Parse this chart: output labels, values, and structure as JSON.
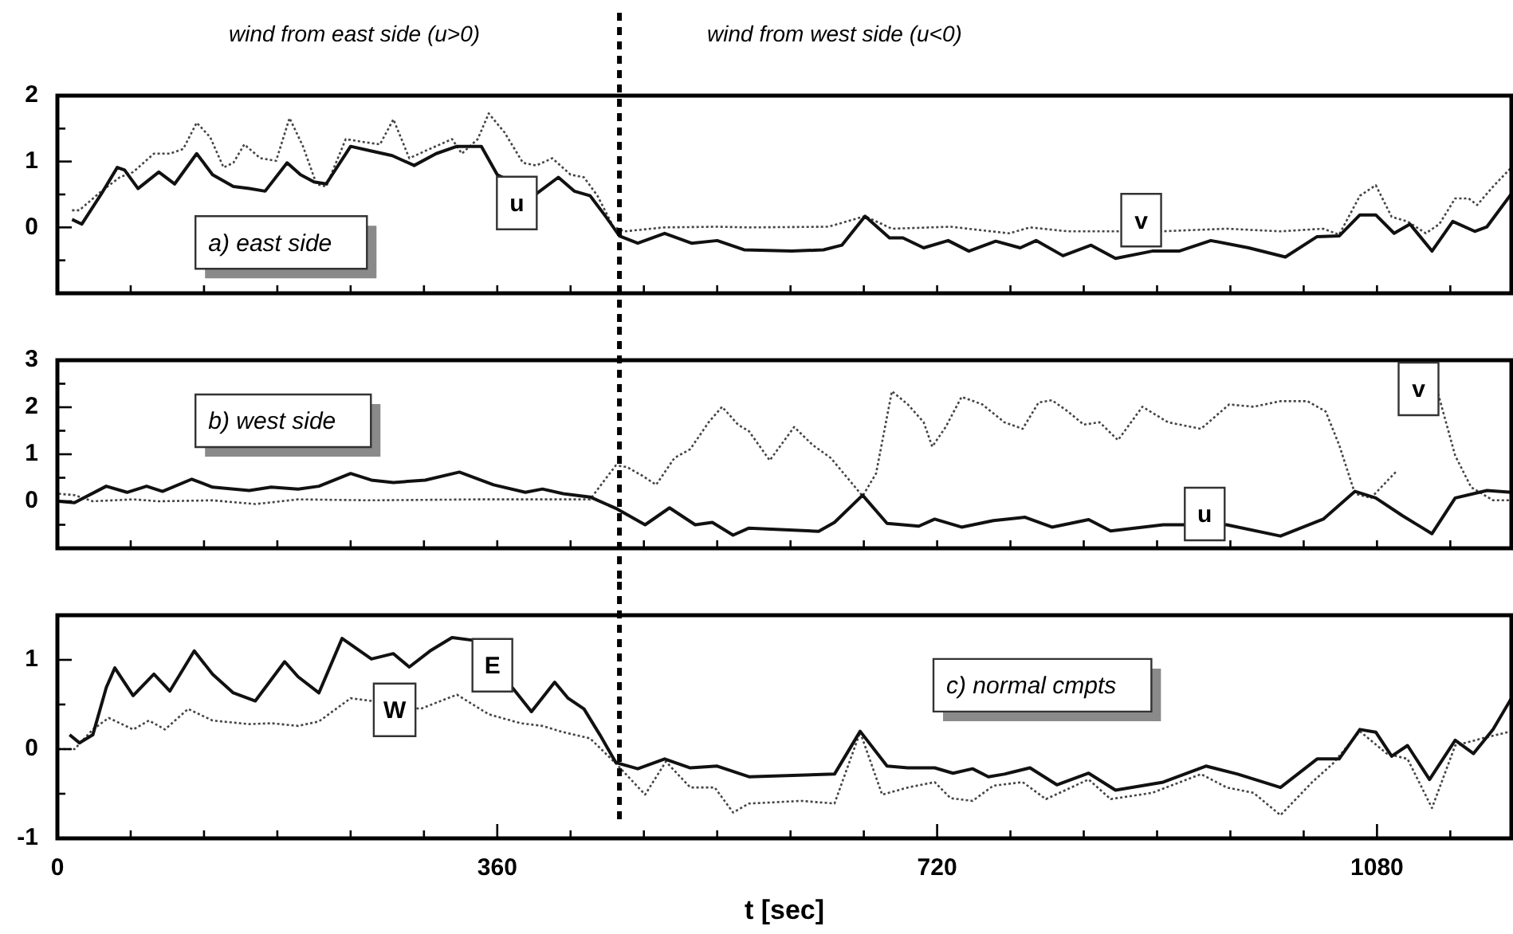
{
  "chart_data": [
    {
      "type": "line",
      "title": "a) east side",
      "annotations": [
        "wind from east side (u>0)",
        "wind from west side (u<0)"
      ],
      "xlim": [
        0,
        1190
      ],
      "ylim": [
        -1,
        2
      ],
      "xticks": [
        0,
        {
          "value": 60,
          "label": null
        },
        {
          "value": 120,
          "label": null
        },
        {
          "value": 180,
          "label": null
        },
        {
          "value": 240,
          "label": null
        },
        {
          "value": 300,
          "label": null
        },
        {
          "value": 360,
          "label": null
        },
        {
          "value": 420,
          "label": null
        },
        {
          "value": 480,
          "label": null
        },
        {
          "value": 540,
          "label": null
        },
        {
          "value": 600,
          "label": null
        },
        {
          "value": 660,
          "label": null
        },
        {
          "value": 720,
          "label": null
        },
        {
          "value": 780,
          "label": null
        },
        {
          "value": 840,
          "label": null
        },
        {
          "value": 900,
          "label": null
        },
        {
          "value": 960,
          "label": null
        },
        {
          "value": 1020,
          "label": null
        },
        {
          "value": 1080,
          "label": null
        },
        {
          "value": 1140,
          "label": null
        }
      ],
      "yticks": [
        {
          "value": -0.5,
          "label": null
        },
        0,
        {
          "value": 0.5,
          "label": null
        },
        1,
        {
          "value": 1.5,
          "label": null
        },
        2
      ],
      "tick_labels": "y",
      "marker": "none",
      "ref_lines": [
        {
          "axis": "x",
          "value": 460,
          "line_style": "dashed",
          "color": "#000000"
        }
      ],
      "series": [
        {
          "name": "u",
          "color": "#111111",
          "line_style": "solid",
          "x": [
            12,
            20,
            36,
            49,
            55,
            66,
            83,
            96,
            114,
            127,
            144,
            157,
            170,
            188,
            199,
            210,
            220,
            240,
            257,
            274,
            292,
            310,
            327,
            347,
            360,
            392,
            410,
            423,
            436,
            449,
            460,
            475,
            497,
            519,
            540,
            562,
            601,
            627,
            642,
            661,
            681,
            692,
            709,
            729,
            746,
            768,
            788,
            801,
            823,
            846,
            866,
            896,
            918,
            944,
            975,
            1005,
            1031,
            1049,
            1066,
            1079,
            1094,
            1107,
            1125,
            1142,
            1160,
            1170,
            1190
          ],
          "values": [
            0.12,
            0.05,
            0.51,
            0.91,
            0.87,
            0.59,
            0.84,
            0.66,
            1.12,
            0.8,
            0.62,
            0.59,
            0.55,
            0.98,
            0.8,
            0.69,
            0.66,
            1.23,
            1.16,
            1.09,
            0.94,
            1.12,
            1.23,
            1.23,
            0.8,
            0.51,
            0.76,
            0.55,
            0.48,
            0.16,
            -0.13,
            -0.24,
            -0.09,
            -0.24,
            -0.2,
            -0.34,
            -0.36,
            -0.34,
            -0.27,
            0.17,
            -0.16,
            -0.16,
            -0.31,
            -0.2,
            -0.36,
            -0.21,
            -0.31,
            -0.2,
            -0.43,
            -0.27,
            -0.47,
            -0.36,
            -0.36,
            -0.2,
            -0.31,
            -0.45,
            -0.14,
            -0.13,
            0.19,
            0.19,
            -0.09,
            0.05,
            -0.36,
            0.09,
            -0.06,
            0.01,
            0.51
          ]
        },
        {
          "name": "v",
          "color": "#444444",
          "line_style": "dotted",
          "x": [
            12,
            18,
            36,
            51,
            62,
            79,
            92,
            103,
            114,
            125,
            136,
            144,
            153,
            166,
            179,
            190,
            201,
            212,
            220,
            236,
            249,
            264,
            275,
            288,
            301,
            323,
            331,
            344,
            353,
            366,
            381,
            392,
            405,
            420,
            431,
            442,
            455,
            464,
            497,
            540,
            566,
            631,
            661,
            683,
            731,
            779,
            796,
            827,
            870,
            903,
            957,
            1001,
            1036,
            1049,
            1066,
            1079,
            1092,
            1105,
            1120,
            1131,
            1144,
            1155,
            1162,
            1175,
            1190
          ],
          "values": [
            0.26,
            0.26,
            0.55,
            0.76,
            0.84,
            1.12,
            1.12,
            1.19,
            1.59,
            1.37,
            0.91,
            0.98,
            1.26,
            1.05,
            1.01,
            1.66,
            1.23,
            0.66,
            0.62,
            1.34,
            1.3,
            1.26,
            1.64,
            1.05,
            1.16,
            1.34,
            1.12,
            1.34,
            1.73,
            1.44,
            0.98,
            0.94,
            1.05,
            0.8,
            0.76,
            0.48,
            0.01,
            -0.06,
            0,
            0.01,
            0,
            0.01,
            0.17,
            -0.02,
            0.01,
            -0.09,
            0,
            -0.06,
            -0.06,
            -0.06,
            -0.02,
            -0.06,
            -0.02,
            -0.11,
            0.48,
            0.64,
            0.16,
            0.09,
            -0.09,
            0.05,
            0.44,
            0.44,
            0.34,
            0.62,
            0.91
          ]
        }
      ]
    },
    {
      "type": "line",
      "title": "b) west side",
      "xlim": [
        0,
        1190
      ],
      "ylim": [
        -1,
        3
      ],
      "xticks": [
        0,
        {
          "value": 60,
          "label": null
        },
        {
          "value": 120,
          "label": null
        },
        {
          "value": 180,
          "label": null
        },
        {
          "value": 240,
          "label": null
        },
        {
          "value": 300,
          "label": null
        },
        {
          "value": 360,
          "label": null
        },
        {
          "value": 420,
          "label": null
        },
        {
          "value": 480,
          "label": null
        },
        {
          "value": 540,
          "label": null
        },
        {
          "value": 600,
          "label": null
        },
        {
          "value": 660,
          "label": null
        },
        {
          "value": 720,
          "label": null
        },
        {
          "value": 780,
          "label": null
        },
        {
          "value": 840,
          "label": null
        },
        {
          "value": 900,
          "label": null
        },
        {
          "value": 960,
          "label": null
        },
        {
          "value": 1020,
          "label": null
        },
        {
          "value": 1080,
          "label": null
        },
        {
          "value": 1140,
          "label": null
        }
      ],
      "yticks": [
        {
          "value": -0.5,
          "label": null
        },
        0,
        {
          "value": 0.5,
          "label": null
        },
        1,
        {
          "value": 1.5,
          "label": null
        },
        2,
        {
          "value": 2.5,
          "label": null
        },
        3
      ],
      "tick_labels": "y",
      "marker": "none",
      "ref_lines": [
        {
          "axis": "x",
          "value": 460,
          "line_style": "dashed",
          "color": "#000000"
        }
      ],
      "series": [
        {
          "name": "u",
          "color": "#111111",
          "line_style": "solid",
          "x": [
            1,
            14,
            40,
            57,
            73,
            86,
            110,
            127,
            157,
            175,
            197,
            214,
            240,
            257,
            275,
            301,
            329,
            357,
            383,
            397,
            414,
            436,
            457,
            481,
            501,
            522,
            536,
            553,
            566,
            623,
            636,
            659,
            679,
            705,
            718,
            740,
            766,
            792,
            814,
            844,
            862,
            905,
            957,
            1001,
            1036,
            1062,
            1079,
            1101,
            1125,
            1144,
            1170,
            1190
          ],
          "values": [
            0,
            -0.03,
            0.32,
            0.19,
            0.32,
            0.21,
            0.47,
            0.3,
            0.23,
            0.3,
            0.26,
            0.32,
            0.59,
            0.45,
            0.4,
            0.45,
            0.62,
            0.35,
            0.19,
            0.26,
            0.16,
            0.09,
            -0.15,
            -0.5,
            -0.14,
            -0.5,
            -0.45,
            -0.72,
            -0.57,
            -0.64,
            -0.45,
            0.13,
            -0.47,
            -0.53,
            -0.38,
            -0.55,
            -0.41,
            -0.34,
            -0.55,
            -0.39,
            -0.63,
            -0.5,
            -0.5,
            -0.74,
            -0.38,
            0.21,
            0.07,
            -0.31,
            -0.69,
            0.07,
            0.23,
            0.19
          ]
        },
        {
          "name": "v",
          "color": "#444444",
          "line_style": "dotted",
          "x": [
            1,
            14,
            29,
            62,
            83,
            127,
            162,
            197,
            257,
            344,
            436,
            449,
            457,
            466,
            479,
            490,
            505,
            518,
            533,
            544,
            557,
            566,
            583,
            603,
            618,
            633,
            659,
            670,
            683,
            696,
            709,
            716,
            727,
            740,
            757,
            775,
            790,
            803,
            814,
            827,
            840,
            853,
            868,
            888,
            909,
            936,
            959,
            979,
            1001,
            1023,
            1038,
            1049,
            1062,
            1075,
            1096,
            1105,
            1130,
            1144,
            1157,
            1175,
            1190
          ],
          "values": [
            0.16,
            0.13,
            0,
            0.04,
            0,
            0.02,
            -0.06,
            0.04,
            0.02,
            0.04,
            0.04,
            0.49,
            0.76,
            0.73,
            0.54,
            0.35,
            0.92,
            1.11,
            1.68,
            2.01,
            1.63,
            1.49,
            0.87,
            1.58,
            1.2,
            0.92,
            0.11,
            0.59,
            2.34,
            2.06,
            1.68,
            1.16,
            1.58,
            2.22,
            2.06,
            1.68,
            1.54,
            2.1,
            2.15,
            1.91,
            1.63,
            1.68,
            1.3,
            2.01,
            1.68,
            1.54,
            2.06,
            2.01,
            2.13,
            2.13,
            1.91,
            1.2,
            0.16,
            0.07,
            0.64,
            null,
            2.29,
            0.97,
            0.3,
            0.02,
            0.02
          ]
        }
      ]
    },
    {
      "type": "line",
      "title": "c) normal cmpts",
      "xlabel": "t [sec]",
      "xlim": [
        0,
        1190
      ],
      "ylim": [
        -1,
        1.5
      ],
      "xticks": [
        0,
        {
          "value": 60,
          "label": null
        },
        {
          "value": 120,
          "label": null
        },
        {
          "value": 180,
          "label": null
        },
        {
          "value": 240,
          "label": null
        },
        {
          "value": 300,
          "label": null
        },
        360,
        {
          "value": 420,
          "label": null
        },
        {
          "value": 480,
          "label": null
        },
        {
          "value": 540,
          "label": null
        },
        {
          "value": 600,
          "label": null
        },
        {
          "value": 660,
          "label": null
        },
        720,
        {
          "value": 780,
          "label": null
        },
        {
          "value": 840,
          "label": null
        },
        {
          "value": 900,
          "label": null
        },
        {
          "value": 960,
          "label": null
        },
        {
          "value": 1020,
          "label": null
        },
        1080,
        {
          "value": 1140,
          "label": null
        }
      ],
      "yticks": [
        -1,
        {
          "value": -0.5,
          "label": null
        },
        0,
        {
          "value": 0.5,
          "label": null
        },
        1
      ],
      "marker": "none",
      "ref_lines": [
        {
          "axis": "x",
          "value": 460,
          "line_style": "dashed",
          "color": "#000000"
        }
      ],
      "series": [
        {
          "name": "E",
          "color": "#111111",
          "line_style": "solid",
          "x": [
            10,
            18,
            29,
            40,
            47,
            62,
            79,
            92,
            112,
            127,
            144,
            162,
            186,
            197,
            214,
            233,
            257,
            275,
            288,
            305,
            323,
            340,
            374,
            388,
            407,
            418,
            431,
            444,
            457,
            475,
            497,
            518,
            540,
            566,
            636,
            657,
            679,
            696,
            718,
            733,
            749,
            762,
            775,
            796,
            818,
            844,
            866,
            905,
            940,
            966,
            1001,
            1031,
            1049,
            1066,
            1079,
            1092,
            1105,
            1123,
            1144,
            1159,
            1175,
            1190
          ],
          "values": [
            0.16,
            0.07,
            0.16,
            0.69,
            0.91,
            0.6,
            0.84,
            0.65,
            1.1,
            0.84,
            0.63,
            0.54,
            0.98,
            0.81,
            0.63,
            1.24,
            1.01,
            1.07,
            0.92,
            1.1,
            1.25,
            1.22,
            0.66,
            0.42,
            0.75,
            0.57,
            0.45,
            0.16,
            -0.15,
            -0.22,
            -0.11,
            -0.21,
            -0.19,
            -0.31,
            -0.28,
            0.2,
            -0.19,
            -0.21,
            -0.21,
            -0.27,
            -0.22,
            -0.31,
            -0.28,
            -0.21,
            -0.4,
            -0.27,
            -0.46,
            -0.37,
            -0.19,
            -0.28,
            -0.43,
            -0.11,
            -0.11,
            0.22,
            0.19,
            -0.08,
            0.04,
            -0.34,
            0.1,
            -0.05,
            0.22,
            0.57
          ]
        },
        {
          "name": "W",
          "color": "#444444",
          "line_style": "dotted",
          "x": [
            1,
            14,
            29,
            42,
            62,
            75,
            88,
            107,
            127,
            157,
            175,
            197,
            214,
            240,
            257,
            297,
            327,
            353,
            379,
            397,
            414,
            436,
            457,
            481,
            498,
            518,
            538,
            553,
            566,
            609,
            636,
            657,
            675,
            696,
            718,
            731,
            749,
            766,
            790,
            809,
            844,
            862,
            896,
            936,
            957,
            979,
            1001,
            1027,
            1044,
            1066,
            1088,
            1105,
            1125,
            1144,
            1166,
            1190
          ],
          "values": [
            0,
            0,
            0.22,
            0.35,
            0.22,
            0.32,
            0.22,
            0.45,
            0.32,
            0.28,
            0.29,
            0.26,
            0.31,
            0.57,
            0.54,
            0.45,
            0.61,
            0.39,
            0.29,
            0.26,
            0.19,
            0.12,
            -0.16,
            -0.51,
            -0.14,
            -0.43,
            -0.43,
            -0.71,
            -0.61,
            -0.58,
            -0.61,
            0.19,
            -0.51,
            -0.43,
            -0.37,
            -0.55,
            -0.58,
            -0.41,
            -0.37,
            -0.56,
            -0.34,
            -0.56,
            -0.49,
            -0.28,
            -0.43,
            -0.49,
            -0.74,
            -0.37,
            -0.16,
            0.2,
            -0.05,
            -0.11,
            -0.66,
            0.04,
            0.12,
            0.2
          ]
        }
      ]
    }
  ]
}
